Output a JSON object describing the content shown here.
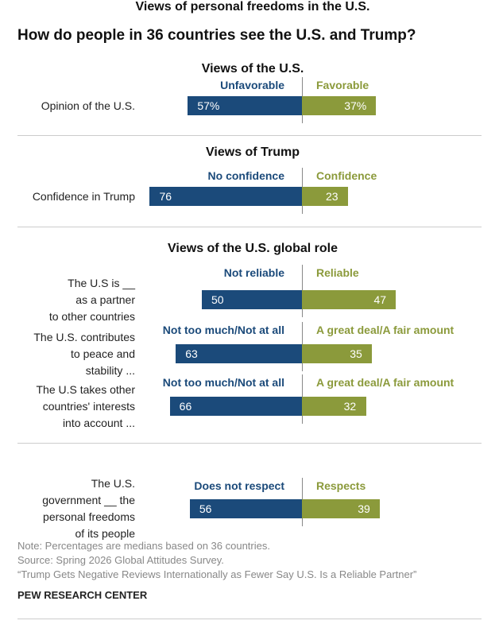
{
  "title": "How do people in 36 countries see the U.S. and Trump?",
  "chart_data": [
    {
      "type": "diverging_bar",
      "title": "Views of the U.S.",
      "categories": [
        "Opinion of the U.S."
      ],
      "series": [
        {
          "name": "Unfavorable",
          "color": "#1b4a7a",
          "values": [
            57
          ],
          "value_labels": [
            "57%"
          ]
        },
        {
          "name": "Favorable",
          "color": "#8b9a3b",
          "values": [
            37
          ],
          "value_labels": [
            "37%"
          ]
        }
      ]
    },
    {
      "type": "diverging_bar",
      "title": "Views of Trump",
      "categories": [
        "Confidence in Trump"
      ],
      "series": [
        {
          "name": "No confidence",
          "color": "#1b4a7a",
          "values": [
            76
          ]
        },
        {
          "name": "Confidence",
          "color": "#8b9a3b",
          "values": [
            23
          ]
        }
      ]
    },
    {
      "type": "diverging_bar",
      "title": "Views of the U.S. global role",
      "categories": [
        "The U.S is __\nas a partner\nto other countries"
      ],
      "series": [
        {
          "name": "Not reliable",
          "color": "#1b4a7a",
          "values": [
            50
          ]
        },
        {
          "name": "Reliable",
          "color": "#8b9a3b",
          "values": [
            47
          ]
        }
      ]
    },
    {
      "type": "diverging_bar",
      "categories": [
        "The U.S. contributes\nto peace and\nstability ..."
      ],
      "series": [
        {
          "name": "Not too much/Not at all",
          "color": "#1b4a7a",
          "values": [
            63
          ]
        },
        {
          "name": "A great deal/A fair amount",
          "color": "#8b9a3b",
          "values": [
            35
          ]
        }
      ]
    },
    {
      "type": "diverging_bar",
      "categories": [
        "The U.S takes other\ncountries' interests\ninto account ..."
      ],
      "series": [
        {
          "name": "Not too much/Not at all",
          "color": "#1b4a7a",
          "values": [
            66
          ]
        },
        {
          "name": "A great deal/A fair amount",
          "color": "#8b9a3b",
          "values": [
            32
          ]
        }
      ]
    },
    {
      "type": "diverging_bar",
      "title": "Views of personal freedoms in the U.S.",
      "categories": [
        "The U.S.\ngovernment __ the\npersonal freedoms\nof its people"
      ],
      "series": [
        {
          "name": "Does not respect",
          "color": "#1b4a7a",
          "values": [
            56
          ]
        },
        {
          "name": "Respects",
          "color": "#8b9a3b",
          "values": [
            39
          ]
        }
      ]
    }
  ],
  "note": "Note: Percentages are medians based on 36 countries.",
  "source": "Source: Spring 2026 Global Attitudes Survey.",
  "report": "“Trump Gets Negative Reviews Internationally as Fewer Say U.S. Is a Reliable Partner”",
  "org": "PEW RESEARCH CENTER"
}
